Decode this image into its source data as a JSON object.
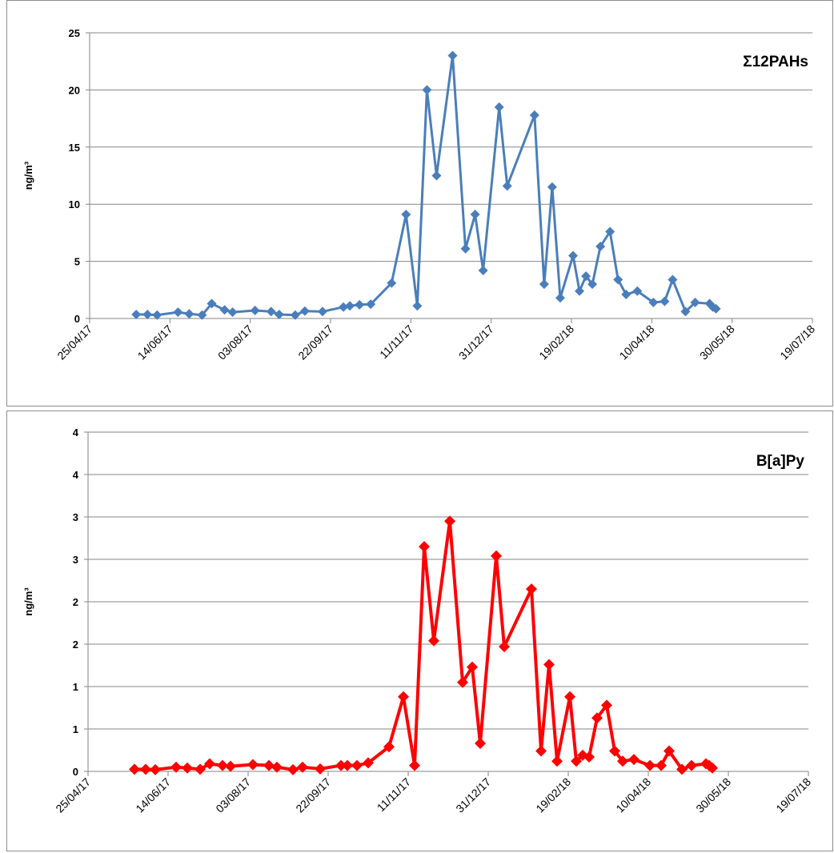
{
  "chart_data": [
    {
      "type": "line",
      "title": "Σ12PAHs",
      "y_label": "ng/m³",
      "color": "#4a7ebb",
      "grid": true,
      "x": [
        "2017-05-24",
        "2017-05-31",
        "2017-06-06",
        "2017-06-19",
        "2017-06-26",
        "2017-07-04",
        "2017-07-10",
        "2017-07-18",
        "2017-07-23",
        "2017-08-06",
        "2017-08-16",
        "2017-08-21",
        "2017-08-31",
        "2017-09-06",
        "2017-09-17",
        "2017-09-30",
        "2017-10-04",
        "2017-10-10",
        "2017-10-17",
        "2017-10-30",
        "2017-11-08",
        "2017-11-15",
        "2017-11-21",
        "2017-11-27",
        "2017-12-07",
        "2017-12-15",
        "2017-12-21",
        "2017-12-26",
        "2018-01-05",
        "2018-01-10",
        "2018-01-27",
        "2018-02-02",
        "2018-02-07",
        "2018-02-12",
        "2018-02-20",
        "2018-02-24",
        "2018-02-28",
        "2018-03-04",
        "2018-03-09",
        "2018-03-15",
        "2018-03-20",
        "2018-03-25",
        "2018-04-01",
        "2018-04-11",
        "2018-04-18",
        "2018-04-23",
        "2018-05-01",
        "2018-05-07",
        "2018-05-16",
        "2018-05-18",
        "2018-05-20"
      ],
      "values": [
        0.35,
        0.35,
        0.3,
        0.55,
        0.4,
        0.3,
        1.3,
        0.75,
        0.55,
        0.7,
        0.6,
        0.35,
        0.3,
        0.65,
        0.6,
        1.0,
        1.1,
        1.2,
        1.25,
        3.1,
        9.1,
        1.1,
        20.0,
        12.5,
        23.0,
        6.1,
        9.1,
        4.2,
        18.5,
        11.6,
        17.8,
        3.0,
        11.5,
        1.8,
        5.5,
        2.4,
        3.7,
        3.0,
        6.3,
        7.6,
        3.4,
        2.1,
        2.4,
        1.4,
        1.5,
        3.4,
        0.6,
        1.4,
        1.3,
        1.0,
        0.85
      ],
      "xlim": [
        "2017-04-25",
        "2018-07-19"
      ],
      "xticks": [
        {
          "value": "2017-04-25",
          "label": "25/04/17"
        },
        {
          "value": "2017-06-14",
          "label": "14/06/17"
        },
        {
          "value": "2017-08-03",
          "label": "03/08/17"
        },
        {
          "value": "2017-09-22",
          "label": "22/09/17"
        },
        {
          "value": "2017-11-11",
          "label": "11/11/17"
        },
        {
          "value": "2017-12-31",
          "label": "31/12/17"
        },
        {
          "value": "2018-02-19",
          "label": "19/02/18"
        },
        {
          "value": "2018-04-10",
          "label": "10/04/18"
        },
        {
          "value": "2018-05-30",
          "label": "30/05/18"
        },
        {
          "value": "2018-07-19",
          "label": "19/07/18"
        }
      ],
      "ylim": [
        0,
        25
      ],
      "yticks": [
        0,
        5,
        10,
        15,
        20,
        25
      ]
    },
    {
      "type": "line",
      "title": "B[a]Py",
      "y_label": "ng/m³",
      "color": "#ff0000",
      "grid": true,
      "x": [
        "2017-05-24",
        "2017-05-31",
        "2017-06-06",
        "2017-06-19",
        "2017-06-26",
        "2017-07-04",
        "2017-07-10",
        "2017-07-18",
        "2017-07-23",
        "2017-08-06",
        "2017-08-16",
        "2017-08-21",
        "2017-08-31",
        "2017-09-06",
        "2017-09-17",
        "2017-09-30",
        "2017-10-04",
        "2017-10-10",
        "2017-10-17",
        "2017-10-30",
        "2017-11-08",
        "2017-11-15",
        "2017-11-21",
        "2017-11-27",
        "2017-12-07",
        "2017-12-15",
        "2017-12-21",
        "2017-12-26",
        "2018-01-05",
        "2018-01-10",
        "2018-01-27",
        "2018-02-02",
        "2018-02-07",
        "2018-02-12",
        "2018-02-20",
        "2018-02-24",
        "2018-02-28",
        "2018-03-04",
        "2018-03-09",
        "2018-03-15",
        "2018-03-20",
        "2018-03-25",
        "2018-04-01",
        "2018-04-11",
        "2018-04-18",
        "2018-04-23",
        "2018-05-01",
        "2018-05-07",
        "2018-05-16",
        "2018-05-18",
        "2018-05-20"
      ],
      "values": [
        0.025,
        0.025,
        0.02,
        0.05,
        0.04,
        0.025,
        0.09,
        0.07,
        0.06,
        0.08,
        0.07,
        0.05,
        0.02,
        0.05,
        0.03,
        0.07,
        0.07,
        0.07,
        0.1,
        0.29,
        0.88,
        0.07,
        2.65,
        1.54,
        2.95,
        1.05,
        1.23,
        0.33,
        2.54,
        1.47,
        2.15,
        0.24,
        1.26,
        0.12,
        0.88,
        0.12,
        0.19,
        0.17,
        0.63,
        0.78,
        0.24,
        0.12,
        0.14,
        0.07,
        0.07,
        0.24,
        0.025,
        0.07,
        0.09,
        0.07,
        0.04
      ],
      "xlim": [
        "2017-04-25",
        "2018-07-19"
      ],
      "xticks": [
        {
          "value": "2017-04-25",
          "label": "25/04/17"
        },
        {
          "value": "2017-06-14",
          "label": "14/06/17"
        },
        {
          "value": "2017-08-03",
          "label": "03/08/17"
        },
        {
          "value": "2017-09-22",
          "label": "22/09/17"
        },
        {
          "value": "2017-11-11",
          "label": "11/11/17"
        },
        {
          "value": "2017-12-31",
          "label": "31/12/17"
        },
        {
          "value": "2018-02-19",
          "label": "19/02/18"
        },
        {
          "value": "2018-04-10",
          "label": "10/04/18"
        },
        {
          "value": "2018-05-30",
          "label": "30/05/18"
        },
        {
          "value": "2018-07-19",
          "label": "19/07/18"
        }
      ],
      "ylim": [
        0,
        4
      ],
      "yticks": [
        0,
        {
          "value": 0.5,
          "label": "1"
        },
        1,
        {
          "value": 1.5,
          "label": "2"
        },
        2,
        {
          "value": 2.5,
          "label": "3"
        },
        3,
        {
          "value": 3.5,
          "label": "4"
        },
        4
      ]
    }
  ]
}
